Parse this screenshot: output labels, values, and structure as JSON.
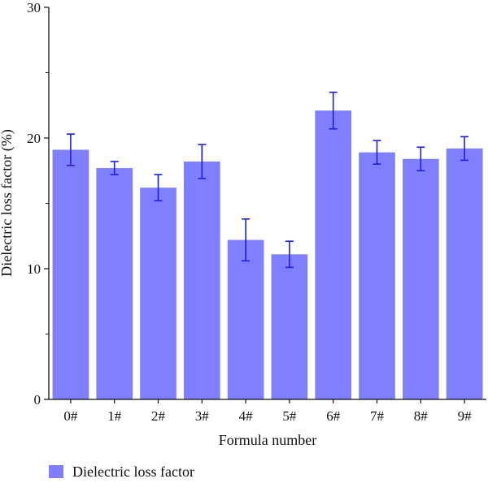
{
  "colors": {
    "bar": "#8080ff",
    "error_bar": "#1f1fd6",
    "axis": "#111111"
  },
  "chart_data": {
    "type": "bar",
    "title": "",
    "xlabel": "Formula number",
    "ylabel": "Dielectric loss factor (%)",
    "ylim": [
      0,
      30
    ],
    "y_ticks": [
      0,
      10,
      20,
      30
    ],
    "y_tick_labels": [
      "0",
      "10",
      "20",
      "30"
    ],
    "y_minor_ticks": [
      5,
      15,
      25
    ],
    "categories": [
      "0#",
      "1#",
      "2#",
      "3#",
      "4#",
      "5#",
      "6#",
      "7#",
      "8#",
      "9#"
    ],
    "series": [
      {
        "name": "Dielectric loss factor",
        "values": [
          19.1,
          17.7,
          16.2,
          18.2,
          12.2,
          11.1,
          22.1,
          18.9,
          18.4,
          19.2
        ],
        "error": [
          1.2,
          0.5,
          1.0,
          1.3,
          1.6,
          1.0,
          1.4,
          0.9,
          0.9,
          0.9
        ]
      }
    ],
    "grid": false,
    "legend": "bottom-left"
  }
}
